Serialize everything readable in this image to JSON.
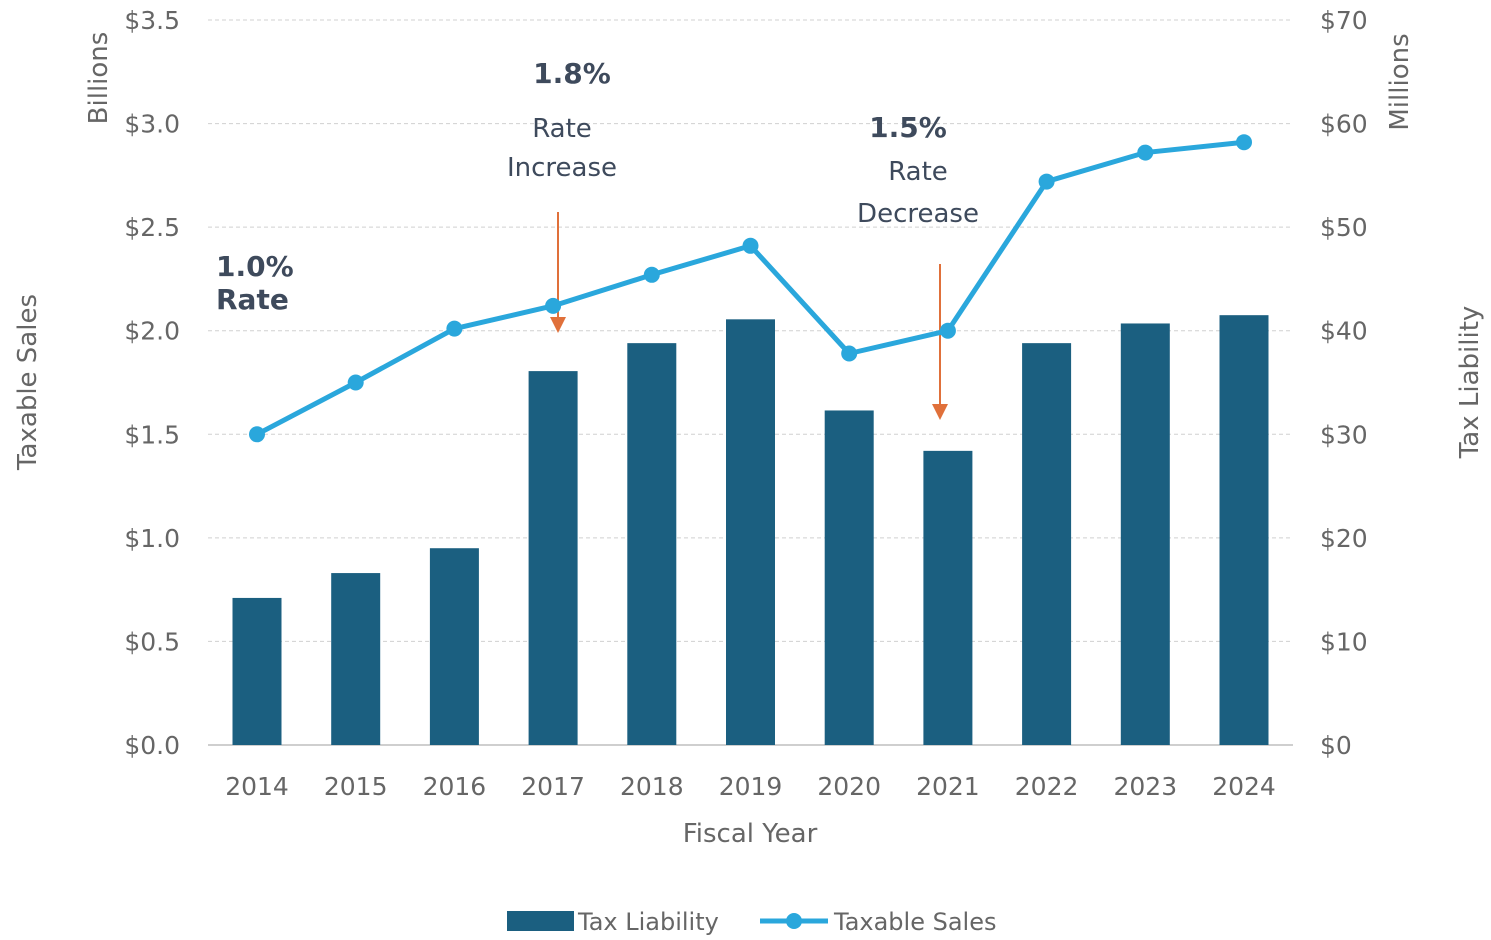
{
  "colors": {
    "bar": "#1b5f80",
    "line": "#2aa7dc",
    "arrow": "#e0703a",
    "grid": "#d0d0d0",
    "text": "#666666",
    "annotation": "#3e4a5c"
  },
  "chart_data": {
    "type": "bar",
    "categories": [
      "2014",
      "2015",
      "2016",
      "2017",
      "2018",
      "2019",
      "2020",
      "2021",
      "2022",
      "2023",
      "2024"
    ],
    "series": [
      {
        "name": "Tax Liability",
        "type": "bar",
        "axis": "right",
        "unit": "millions $",
        "values": [
          14.2,
          16.6,
          19.0,
          36.1,
          38.8,
          41.1,
          32.3,
          28.4,
          38.8,
          40.7,
          41.5
        ]
      },
      {
        "name": "Taxable Sales",
        "type": "line",
        "axis": "left",
        "unit": "billions $",
        "values": [
          1.5,
          1.75,
          2.01,
          2.12,
          2.27,
          2.41,
          1.89,
          2.0,
          2.72,
          2.86,
          2.91
        ]
      }
    ],
    "xlabel": "Fiscal Year",
    "ylabel_left": "Taxable Sales",
    "ylabel_left_unit": "Billions",
    "ylabel_right": "Tax Liability",
    "ylabel_right_unit": "Millions",
    "ylim_left": [
      0,
      3.5
    ],
    "ylim_right": [
      0,
      70
    ],
    "left_ticks": [
      "$0.0",
      "$0.5",
      "$1.0",
      "$1.5",
      "$2.0",
      "$2.5",
      "$3.0",
      "$3.5"
    ],
    "right_ticks": [
      "$0",
      "$10",
      "$20",
      "$30",
      "$40",
      "$50",
      "$60",
      "$70"
    ],
    "grid": true,
    "legend_position": "bottom",
    "annotations": [
      {
        "pct": "1.0%",
        "lines": [
          "Rate"
        ],
        "category": "2014"
      },
      {
        "pct": "1.8%",
        "lines": [
          "Rate",
          "Increase"
        ],
        "category": "2017"
      },
      {
        "pct": "1.5%",
        "lines": [
          "Rate",
          "Decrease"
        ],
        "category": "2021"
      }
    ]
  }
}
